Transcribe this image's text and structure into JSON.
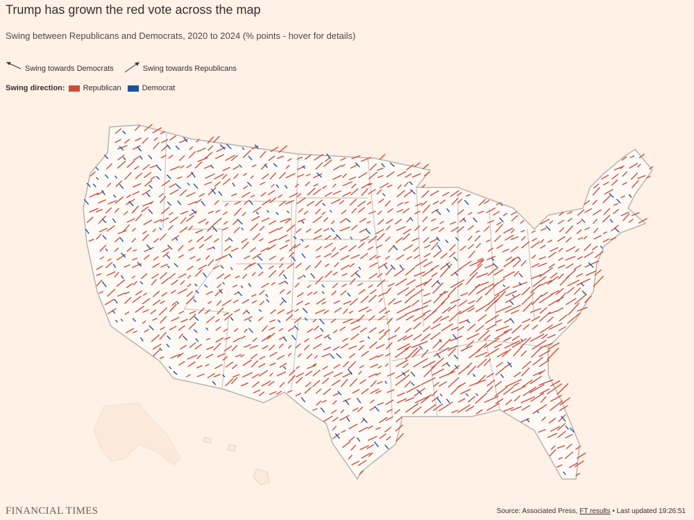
{
  "header": {
    "title": "Trump has grown the red vote across the map",
    "subtitle": "Swing between Republicans and Democrats, 2020 to 2024 (% points - hover for details)"
  },
  "legend": {
    "towards_democrats": "Swing towards Democrats",
    "towards_republicans": "Swing towards Republicans",
    "direction_label": "Swing direction:",
    "republican": "Republican",
    "democrat": "Democrat"
  },
  "footer": {
    "brand": "FINANCIAL TIMES",
    "source_prefix": "Source: Associated Press,",
    "source_link": "FT results",
    "updated": "• Last updated 19:26:51"
  }
}
